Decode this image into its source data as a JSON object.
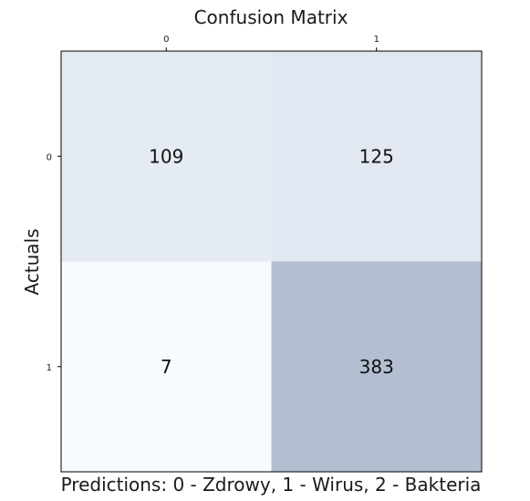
{
  "chart_data": {
    "type": "heatmap",
    "title": "Confusion Matrix",
    "xlabel": "Predictions: 0 - Zdrowy, 1 - Wirus, 2 - Bakteria",
    "ylabel": "Actuals",
    "x_tick_labels": [
      "0",
      "1"
    ],
    "y_tick_labels": [
      "0",
      "1"
    ],
    "x_axis_position": "top",
    "matrix": [
      [
        109,
        125
      ],
      [
        7,
        383
      ]
    ],
    "colormap": {
      "low": "#f7fbff",
      "high": "#b3bfd1"
    },
    "grid": false
  }
}
